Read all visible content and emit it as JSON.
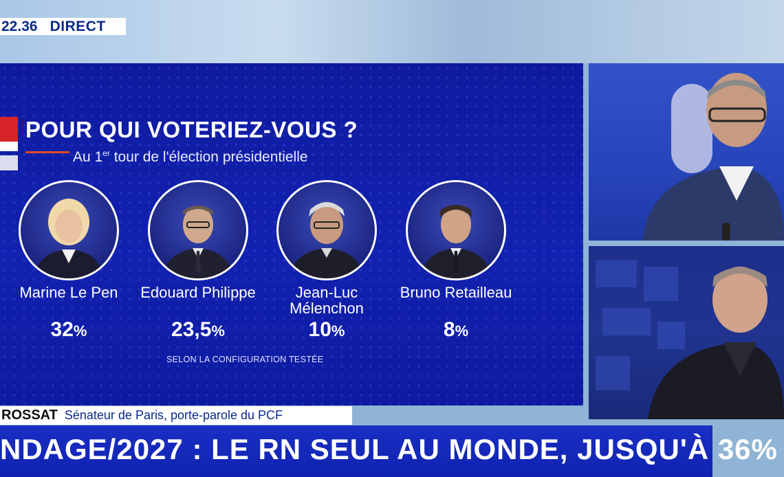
{
  "header": {
    "clock": "22.36",
    "live_label": "DIRECT"
  },
  "poll": {
    "title": "POUR QUI VOTERIEZ-VOUS ?",
    "subtitle_pre": "Au 1",
    "subtitle_sup": "er",
    "subtitle_post": " tour de l'élection présidentielle",
    "note": "SELON LA CONFIGURATION TESTÉE",
    "candidates": [
      {
        "name_line1": "Marine Le Pen",
        "name_line2": "",
        "percent": "32",
        "unit": "%",
        "value": 32
      },
      {
        "name_line1": "Edouard Philippe",
        "name_line2": "",
        "percent": "23,5",
        "unit": "%",
        "value": 23.5
      },
      {
        "name_line1": "Jean-Luc",
        "name_line2": "Mélenchon",
        "percent": "10",
        "unit": "%",
        "value": 10
      },
      {
        "name_line1": "Bruno Retailleau",
        "name_line2": "",
        "percent": "8",
        "unit": "%",
        "value": 8
      }
    ]
  },
  "lower_third": {
    "surname": "ROSSAT",
    "role": "Sénateur de Paris, porte-parole du PCF"
  },
  "headline": "NDAGE/2027 : LE RN SEUL AU MONDE, JUSQU'À 36% !",
  "colors": {
    "panel_blue": "#1222b0",
    "accent_red": "#e2492a",
    "brand_navy": "#0a2a8a"
  }
}
